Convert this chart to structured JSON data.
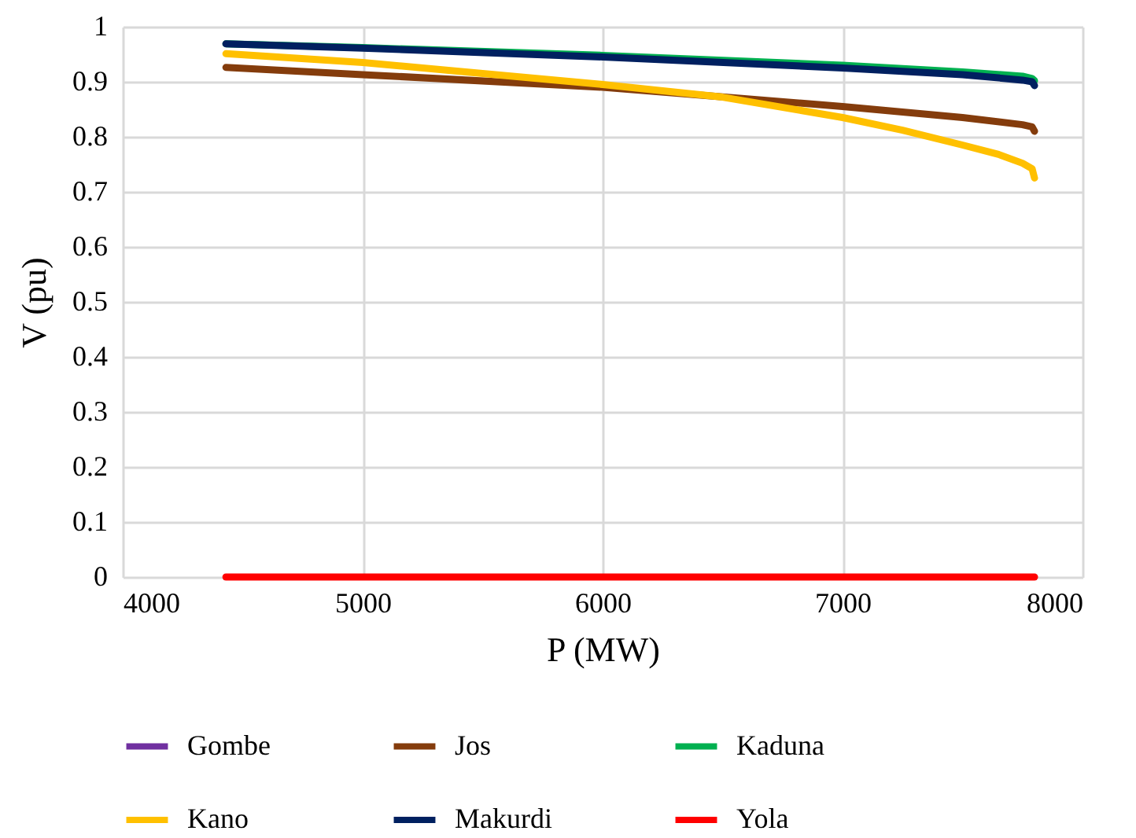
{
  "chart_data": {
    "type": "line",
    "xlabel": "P (MW)",
    "ylabel": "V (pu)",
    "xlim": [
      4000,
      8000
    ],
    "xticks": [
      4000,
      5000,
      6000,
      7000,
      8000
    ],
    "ylim": [
      0,
      1
    ],
    "yticks": [
      0,
      0.1,
      0.2,
      0.3,
      0.4,
      0.5,
      0.6,
      0.7,
      0.8,
      0.9,
      1
    ],
    "grid": true,
    "legend": "bottom",
    "line_style": "solid",
    "series": [
      {
        "name": "Gombe",
        "color": "#7030a0"
      },
      {
        "name": "Jos",
        "color": "#843c0c",
        "x": [
          4430,
          5000,
          6000,
          7000,
          7500,
          7750,
          7790,
          7800
        ],
        "values": [
          0.926,
          0.913,
          0.89,
          0.855,
          0.835,
          0.822,
          0.818,
          0.81
        ]
      },
      {
        "name": "Kaduna",
        "color": "#00b050",
        "x": [
          4430,
          5000,
          6000,
          7000,
          7500,
          7750,
          7790,
          7800
        ],
        "values": [
          0.969,
          0.962,
          0.948,
          0.93,
          0.918,
          0.91,
          0.906,
          0.902
        ]
      },
      {
        "name": "Kano",
        "color": "#ffc000",
        "x": [
          4430,
          5000,
          5500,
          6000,
          6500,
          7000,
          7250,
          7500,
          7650,
          7750,
          7790,
          7800
        ],
        "values": [
          0.951,
          0.935,
          0.915,
          0.895,
          0.872,
          0.835,
          0.812,
          0.785,
          0.768,
          0.752,
          0.742,
          0.725
        ]
      },
      {
        "name": "Makurdi",
        "color": "#002060",
        "x": [
          4430,
          5000,
          6000,
          7000,
          7500,
          7750,
          7790,
          7800
        ],
        "values": [
          0.969,
          0.961,
          0.945,
          0.925,
          0.913,
          0.903,
          0.9,
          0.893
        ]
      },
      {
        "name": "Yola",
        "color": "#ff0000",
        "x": [
          4430,
          7800
        ],
        "values": [
          0,
          0
        ]
      }
    ]
  }
}
